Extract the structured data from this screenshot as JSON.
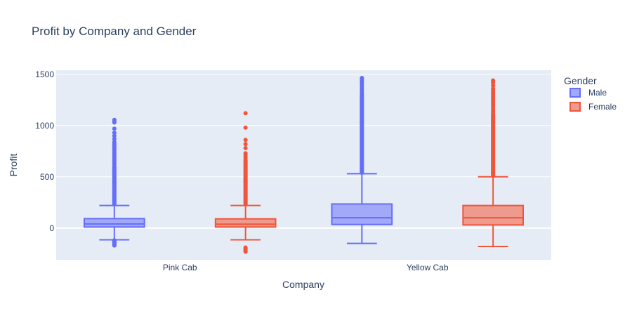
{
  "chart_data": {
    "type": "box",
    "title": "Profit by Company and Gender",
    "xlabel": "Company",
    "ylabel": "Profit",
    "categories": [
      "Pink Cab",
      "Yellow Cab"
    ],
    "ylim": [
      -310,
      1540
    ],
    "yticks": [
      0,
      500,
      1000,
      1500
    ],
    "grid": true,
    "legend": {
      "title": "Gender",
      "position": "top-right"
    },
    "series": [
      {
        "name": "Male",
        "color": "#636efa",
        "fill": "#a3a9f9",
        "boxes": [
          {
            "category": "Pink Cab",
            "lowerfence": -115,
            "q1": 10,
            "median": 40,
            "q3": 92,
            "upperfence": 220,
            "outliers_low": [
              -120,
              -125,
              -130,
              -135,
              -140,
              -145,
              -150,
              -155,
              -160,
              -165,
              -170
            ],
            "outliers_high_min": 230,
            "outliers_dense_max": 590,
            "outliers_high": [
              600,
              620,
              640,
              660,
              680,
              700,
              720,
              740,
              760,
              775,
              790,
              805,
              820,
              840,
              870,
              900,
              930,
              970,
              1030,
              1045,
              1055
            ]
          },
          {
            "category": "Yellow Cab",
            "lowerfence": -150,
            "q1": 35,
            "median": 100,
            "q3": 235,
            "upperfence": 530,
            "outliers_low": [],
            "outliers_high_min": 540,
            "outliers_dense_max": 1300,
            "outliers_high": [
              1320,
              1340,
              1360,
              1380,
              1400,
              1420,
              1440,
              1455,
              1465
            ]
          }
        ]
      },
      {
        "name": "Female",
        "color": "#ef553b",
        "fill": "#ee9a8c",
        "boxes": [
          {
            "category": "Pink Cab",
            "lowerfence": -115,
            "q1": 10,
            "median": 38,
            "q3": 90,
            "upperfence": 220,
            "outliers_low": [
              -190,
              -200,
              -210,
              -220,
              -230
            ],
            "outliers_high_min": 230,
            "outliers_dense_max": 650,
            "outliers_high": [
              660,
              680,
              700,
              720,
              730,
              780,
              820,
              860,
              980,
              1120
            ]
          },
          {
            "category": "Yellow Cab",
            "lowerfence": -180,
            "q1": 30,
            "median": 100,
            "q3": 220,
            "upperfence": 500,
            "outliers_low": [],
            "outliers_high_min": 510,
            "outliers_dense_max": 1100,
            "outliers_high": [
              1120,
              1140,
              1160,
              1180,
              1200,
              1220,
              1240,
              1260,
              1280,
              1300,
              1320,
              1340,
              1360,
              1390,
              1420,
              1440
            ]
          }
        ]
      }
    ]
  }
}
